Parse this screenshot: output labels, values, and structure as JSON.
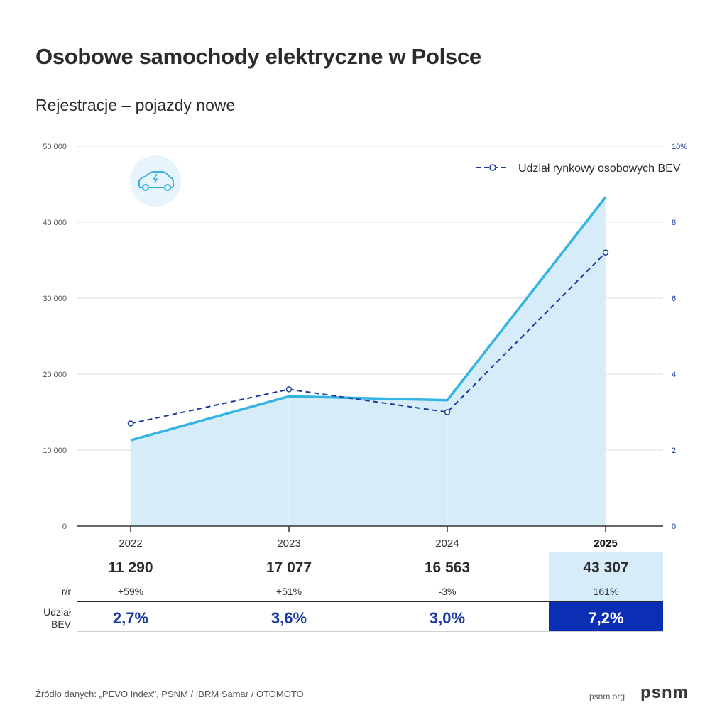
{
  "header": {
    "title": "Osobowe samochody elektryczne w Polsce",
    "subtitle": "Rejestracje – pojazdy nowe"
  },
  "colors": {
    "line": "#35b4e3",
    "area": "#d6ecf9",
    "dashed": "#1a3aa0",
    "highlight_light": "#d6ecf9",
    "highlight_dark": "#0a2fb5"
  },
  "icon": "electric-car-icon",
  "chart_data": {
    "type": "line",
    "title": "Osobowe samochody elektryczne w Polsce",
    "subtitle": "Rejestracje – pojazdy nowe",
    "categories": [
      "2022",
      "2023",
      "2024",
      "2025"
    ],
    "highlight_category": "2025",
    "series": [
      {
        "name": "Rejestracje",
        "axis": "left",
        "style": "solid-area",
        "values": [
          11290,
          17077,
          16563,
          43307
        ]
      },
      {
        "name": "Udział rynkowy osobowych BEV",
        "axis": "right",
        "style": "dashed-markers",
        "values": [
          2.7,
          3.6,
          3.0,
          7.2
        ]
      }
    ],
    "left_axis": {
      "ylim": [
        0,
        50000
      ],
      "ticks": [
        "0",
        "10 000",
        "20 000",
        "30 000",
        "40 000",
        "50 000"
      ]
    },
    "right_axis": {
      "ylim": [
        0,
        10
      ],
      "ticks": [
        "0",
        "2",
        "4",
        "6",
        "8",
        "10%"
      ]
    },
    "legend": {
      "position": "top-right",
      "label": "Udział rynkowy osobowych BEV"
    },
    "grid": true
  },
  "table": {
    "values": [
      "11 290",
      "17 077",
      "16 563",
      "43 307"
    ],
    "yoy_label": "r/r",
    "yoy": [
      "+59%",
      "+51%",
      "-3%",
      "161%"
    ],
    "share_label_1": "Udział",
    "share_label_2": "BEV",
    "share": [
      "2,7%",
      "3,6%",
      "3,0%",
      "7,2%"
    ]
  },
  "footer": {
    "source": "Źródło danych: „PEVO Index\", PSNM / IBRM Samar / OTOMOTO",
    "url": "psnm.org",
    "logo": "psnm"
  }
}
